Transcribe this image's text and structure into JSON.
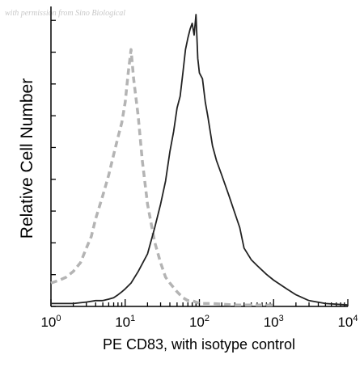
{
  "watermark": "with permission from Sino Biological",
  "chart_data": {
    "type": "line",
    "xlabel": "PE CD83, with isotype control",
    "ylabel": "Relative Cell Number",
    "x_scale": "log",
    "xlim": [
      1,
      10000
    ],
    "ylim": [
      0,
      1
    ],
    "x_ticks": [
      {
        "base": "10",
        "exp": "0"
      },
      {
        "base": "10",
        "exp": "1"
      },
      {
        "base": "10",
        "exp": "2"
      },
      {
        "base": "10",
        "exp": "3"
      },
      {
        "base": "10",
        "exp": "4"
      }
    ],
    "grid": false,
    "series": [
      {
        "style": "dashed",
        "color": "#b4b4b4",
        "x": [
          1,
          1.3,
          1.6,
          2,
          2.5,
          3,
          3.5,
          4,
          5,
          6,
          7,
          8,
          9,
          10,
          11,
          12,
          13,
          15,
          17,
          20,
          25,
          30,
          35,
          40,
          50,
          60,
          70,
          80,
          100,
          150,
          300,
          1000
        ],
        "y": [
          0.08,
          0.09,
          0.1,
          0.12,
          0.15,
          0.2,
          0.24,
          0.3,
          0.38,
          0.45,
          0.52,
          0.58,
          0.63,
          0.7,
          0.8,
          0.88,
          0.78,
          0.65,
          0.5,
          0.35,
          0.22,
          0.15,
          0.1,
          0.08,
          0.05,
          0.03,
          0.02,
          0.02,
          0.01,
          0.01,
          0.005,
          0.005
        ]
      },
      {
        "style": "solid",
        "color": "#222222",
        "x": [
          1,
          2,
          3,
          4,
          5,
          6,
          7,
          8,
          9,
          10,
          12,
          15,
          20,
          25,
          30,
          35,
          40,
          45,
          50,
          55,
          60,
          65,
          70,
          75,
          80,
          85,
          90,
          95,
          100,
          110,
          120,
          130,
          150,
          170,
          200,
          250,
          300,
          350,
          400,
          500,
          600,
          800,
          1000,
          1500,
          2000,
          3000,
          5000,
          10000
        ],
        "y": [
          0.01,
          0.01,
          0.015,
          0.02,
          0.02,
          0.025,
          0.03,
          0.04,
          0.05,
          0.06,
          0.08,
          0.12,
          0.18,
          0.27,
          0.35,
          0.43,
          0.53,
          0.6,
          0.68,
          0.72,
          0.8,
          0.88,
          0.92,
          0.95,
          0.97,
          0.93,
          1.0,
          0.85,
          0.8,
          0.78,
          0.7,
          0.65,
          0.55,
          0.5,
          0.45,
          0.38,
          0.32,
          0.27,
          0.2,
          0.16,
          0.14,
          0.11,
          0.09,
          0.06,
          0.04,
          0.02,
          0.01,
          0.005
        ]
      }
    ]
  }
}
